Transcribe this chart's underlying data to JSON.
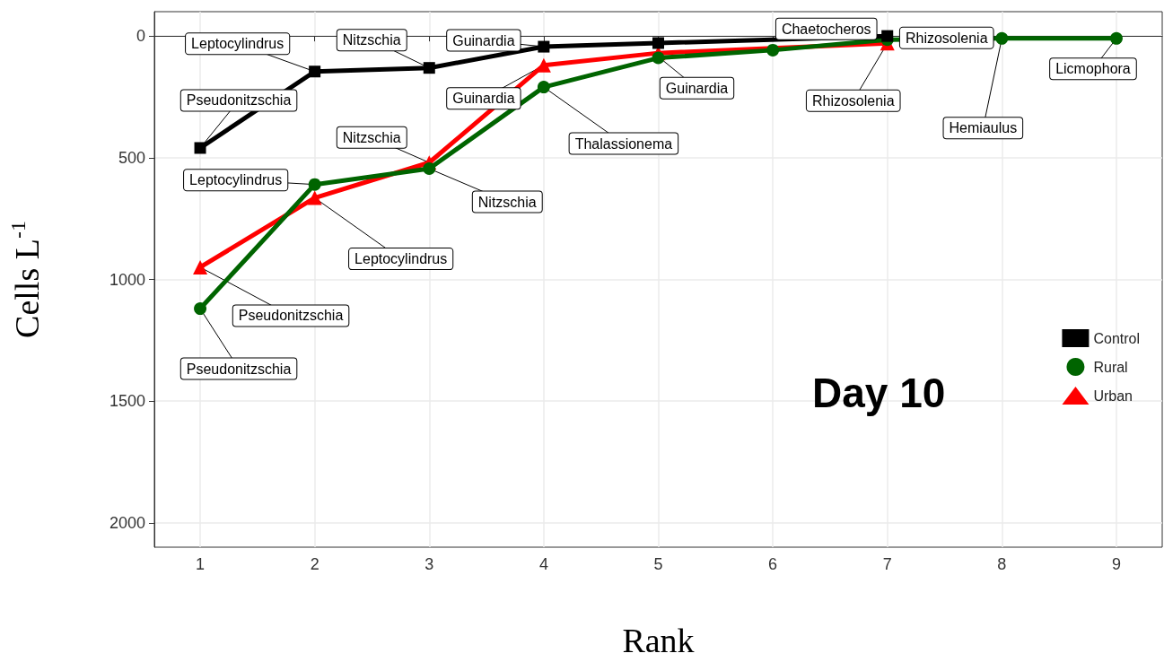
{
  "chart_data": {
    "type": "line",
    "xlabel": "Rank",
    "ylabel": "Cells L$^{-1}$",
    "xlim": [
      0.6,
      9.4
    ],
    "xticks": [
      1,
      2,
      3,
      4,
      5,
      6,
      7,
      8,
      9
    ],
    "ylim": [
      2100,
      -100
    ],
    "yticks": [
      0,
      500,
      1000,
      1500,
      2000
    ],
    "grid": true,
    "legend": "right",
    "line_style": "solid",
    "series": [
      {
        "name": "Control",
        "color": "#000000",
        "marker": "square",
        "x": [
          1,
          2,
          3,
          4,
          5,
          7
        ],
        "values": [
          460,
          146,
          131,
          44,
          29,
          0
        ]
      },
      {
        "name": "Rural",
        "color": "#006400",
        "marker": "circle",
        "x": [
          1,
          2,
          3,
          4,
          5,
          6,
          7,
          8,
          9
        ],
        "values": [
          1120,
          610,
          545,
          210,
          90,
          58,
          15,
          10,
          10
        ]
      },
      {
        "name": "Urban",
        "color": "#ff0000",
        "marker": "triangle",
        "x": [
          1,
          2,
          3,
          4,
          5,
          7
        ],
        "values": [
          950,
          665,
          520,
          120,
          70,
          30
        ]
      }
    ],
    "annotations": [
      {
        "text": "Pseudonitzschia",
        "x": 1,
        "y": 460
      },
      {
        "text": "Leptocylindrus",
        "x": 2,
        "y": 146
      },
      {
        "text": "Nitzschia",
        "x": 3,
        "y": 131
      },
      {
        "text": "Guinardia",
        "x": 4,
        "y": 44
      },
      {
        "text": "Chaetocheros",
        "x": 7,
        "y": 0
      },
      {
        "text": "Rhizosolenia",
        "x": 7,
        "y": 15
      },
      {
        "text": "Leptocylindrus",
        "x": 2,
        "y": 610
      },
      {
        "text": "Nitzschia",
        "x": 3,
        "y": 545
      },
      {
        "text": "Thalassionema",
        "x": 4,
        "y": 210
      },
      {
        "text": "Guinardia",
        "x": 5,
        "y": 85
      },
      {
        "text": "Hemiaulus",
        "x": 8,
        "y": 10
      },
      {
        "text": "Licmophora",
        "x": 9,
        "y": 10
      },
      {
        "text": "Pseudonitzschia",
        "x": 1,
        "y": 1120
      },
      {
        "text": "Pseudonitzschia",
        "x": 1,
        "y": 950
      },
      {
        "text": "Leptocylindrus",
        "x": 2,
        "y": 665
      },
      {
        "text": "Nitzschia",
        "x": 3,
        "y": 520
      },
      {
        "text": "Guinardia",
        "x": 4,
        "y": 120
      },
      {
        "text": "Rhizosolenia",
        "x": 7,
        "y": 30
      },
      "Day 10"
    ]
  }
}
